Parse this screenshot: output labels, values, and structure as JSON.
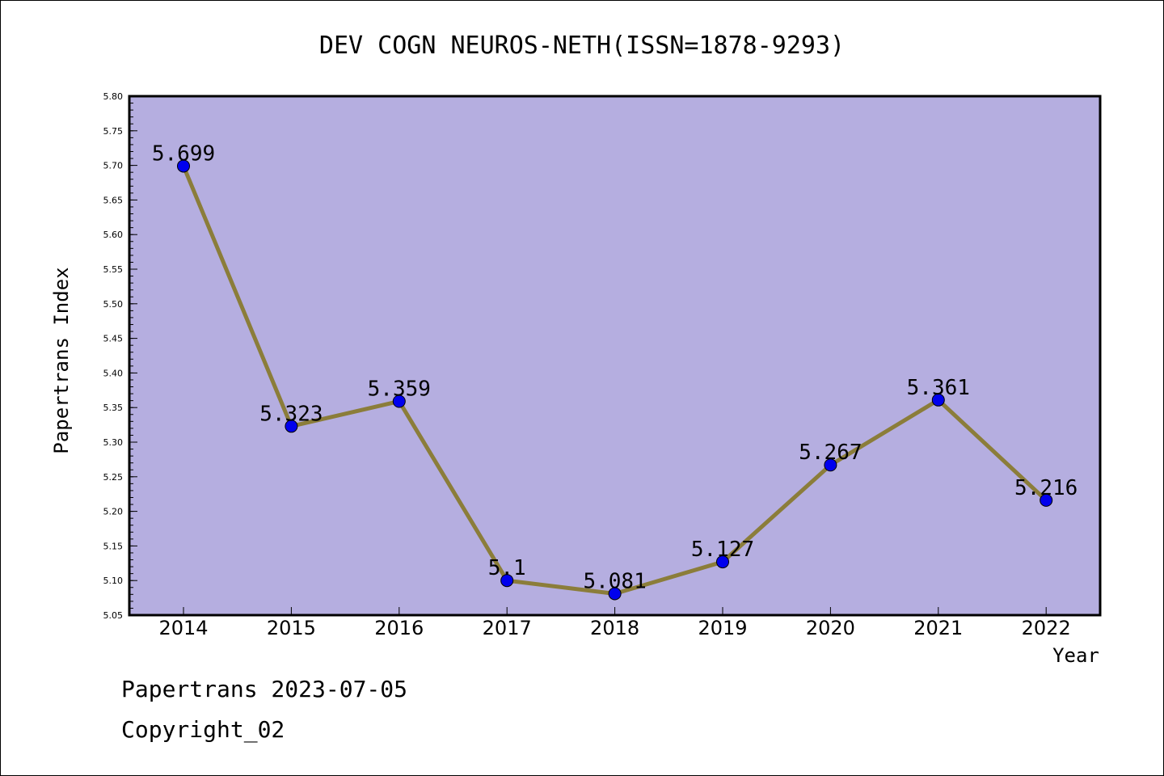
{
  "chart_data": {
    "type": "line",
    "title": "DEV COGN NEUROS-NETH(ISSN=1878-9293)",
    "xlabel": "Year",
    "ylabel": "Papertrans Index",
    "categories": [
      "2014",
      "2015",
      "2016",
      "2017",
      "2018",
      "2019",
      "2020",
      "2021",
      "2022"
    ],
    "values": [
      5.699,
      5.323,
      5.359,
      5.1,
      5.081,
      5.127,
      5.267,
      5.361,
      5.216
    ],
    "data_labels": [
      "5.699",
      "5.323",
      "5.359",
      "5.1",
      "5.081",
      "5.127",
      "5.267",
      "5.361",
      "5.216"
    ],
    "ylim": [
      5.05,
      5.8
    ],
    "yticks": [
      "5.05",
      "5.10",
      "5.15",
      "5.20",
      "5.25",
      "5.30",
      "5.35",
      "5.40",
      "5.45",
      "5.50",
      "5.55",
      "5.60",
      "5.65",
      "5.70",
      "5.75",
      "5.80"
    ],
    "grid": false,
    "colors": {
      "plot_background": "#b5aee0",
      "line": "#8b7d3a",
      "marker": "#0000ee"
    }
  },
  "footer": {
    "line1": "Papertrans 2023-07-05",
    "line2": "Copyright_02"
  }
}
